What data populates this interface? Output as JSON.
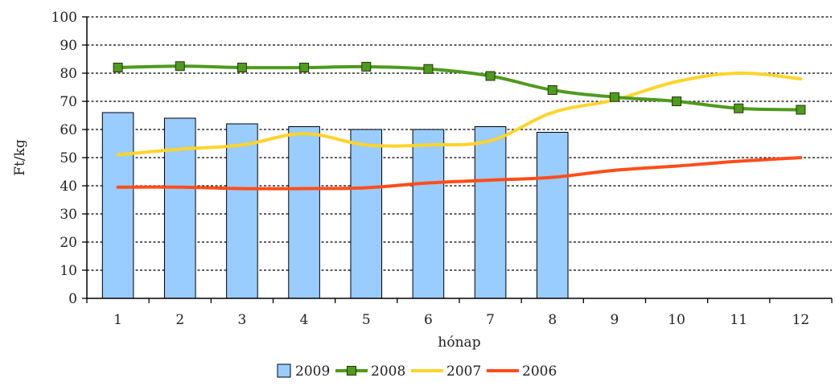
{
  "chart_data": {
    "type": "bar",
    "categories": [
      "1",
      "2",
      "3",
      "4",
      "5",
      "6",
      "7",
      "8",
      "9",
      "10",
      "11",
      "12"
    ],
    "xlabel": "hónap",
    "ylabel": "Ft/kg",
    "ylim": [
      0,
      100
    ],
    "yticks": [
      "0",
      "10",
      "20",
      "30",
      "40",
      "50",
      "60",
      "70",
      "80",
      "90",
      "100"
    ],
    "grid": true,
    "legend_position": "bottom",
    "series": [
      {
        "name": "2009",
        "kind": "bar",
        "color": "#99ccff",
        "values": [
          66,
          64,
          62,
          61,
          60,
          60,
          61,
          59,
          null,
          null,
          null,
          null
        ]
      },
      {
        "name": "2008",
        "kind": "line",
        "marker": "square",
        "color": "#4f9a1f",
        "values": [
          82,
          82.5,
          82,
          82,
          82.3,
          81.5,
          79,
          74,
          71.5,
          70,
          67.5,
          67
        ]
      },
      {
        "name": "2007",
        "kind": "line",
        "color": "#ffd42a",
        "values": [
          51,
          53,
          54.5,
          58.5,
          54.5,
          54.5,
          56,
          66,
          70.5,
          77,
          80,
          78
        ]
      },
      {
        "name": "2006",
        "kind": "line",
        "color": "#ff4d1a",
        "values": [
          39.5,
          39.5,
          39,
          39,
          39.3,
          41,
          42,
          43,
          45.5,
          47,
          48.7,
          50
        ]
      }
    ]
  }
}
